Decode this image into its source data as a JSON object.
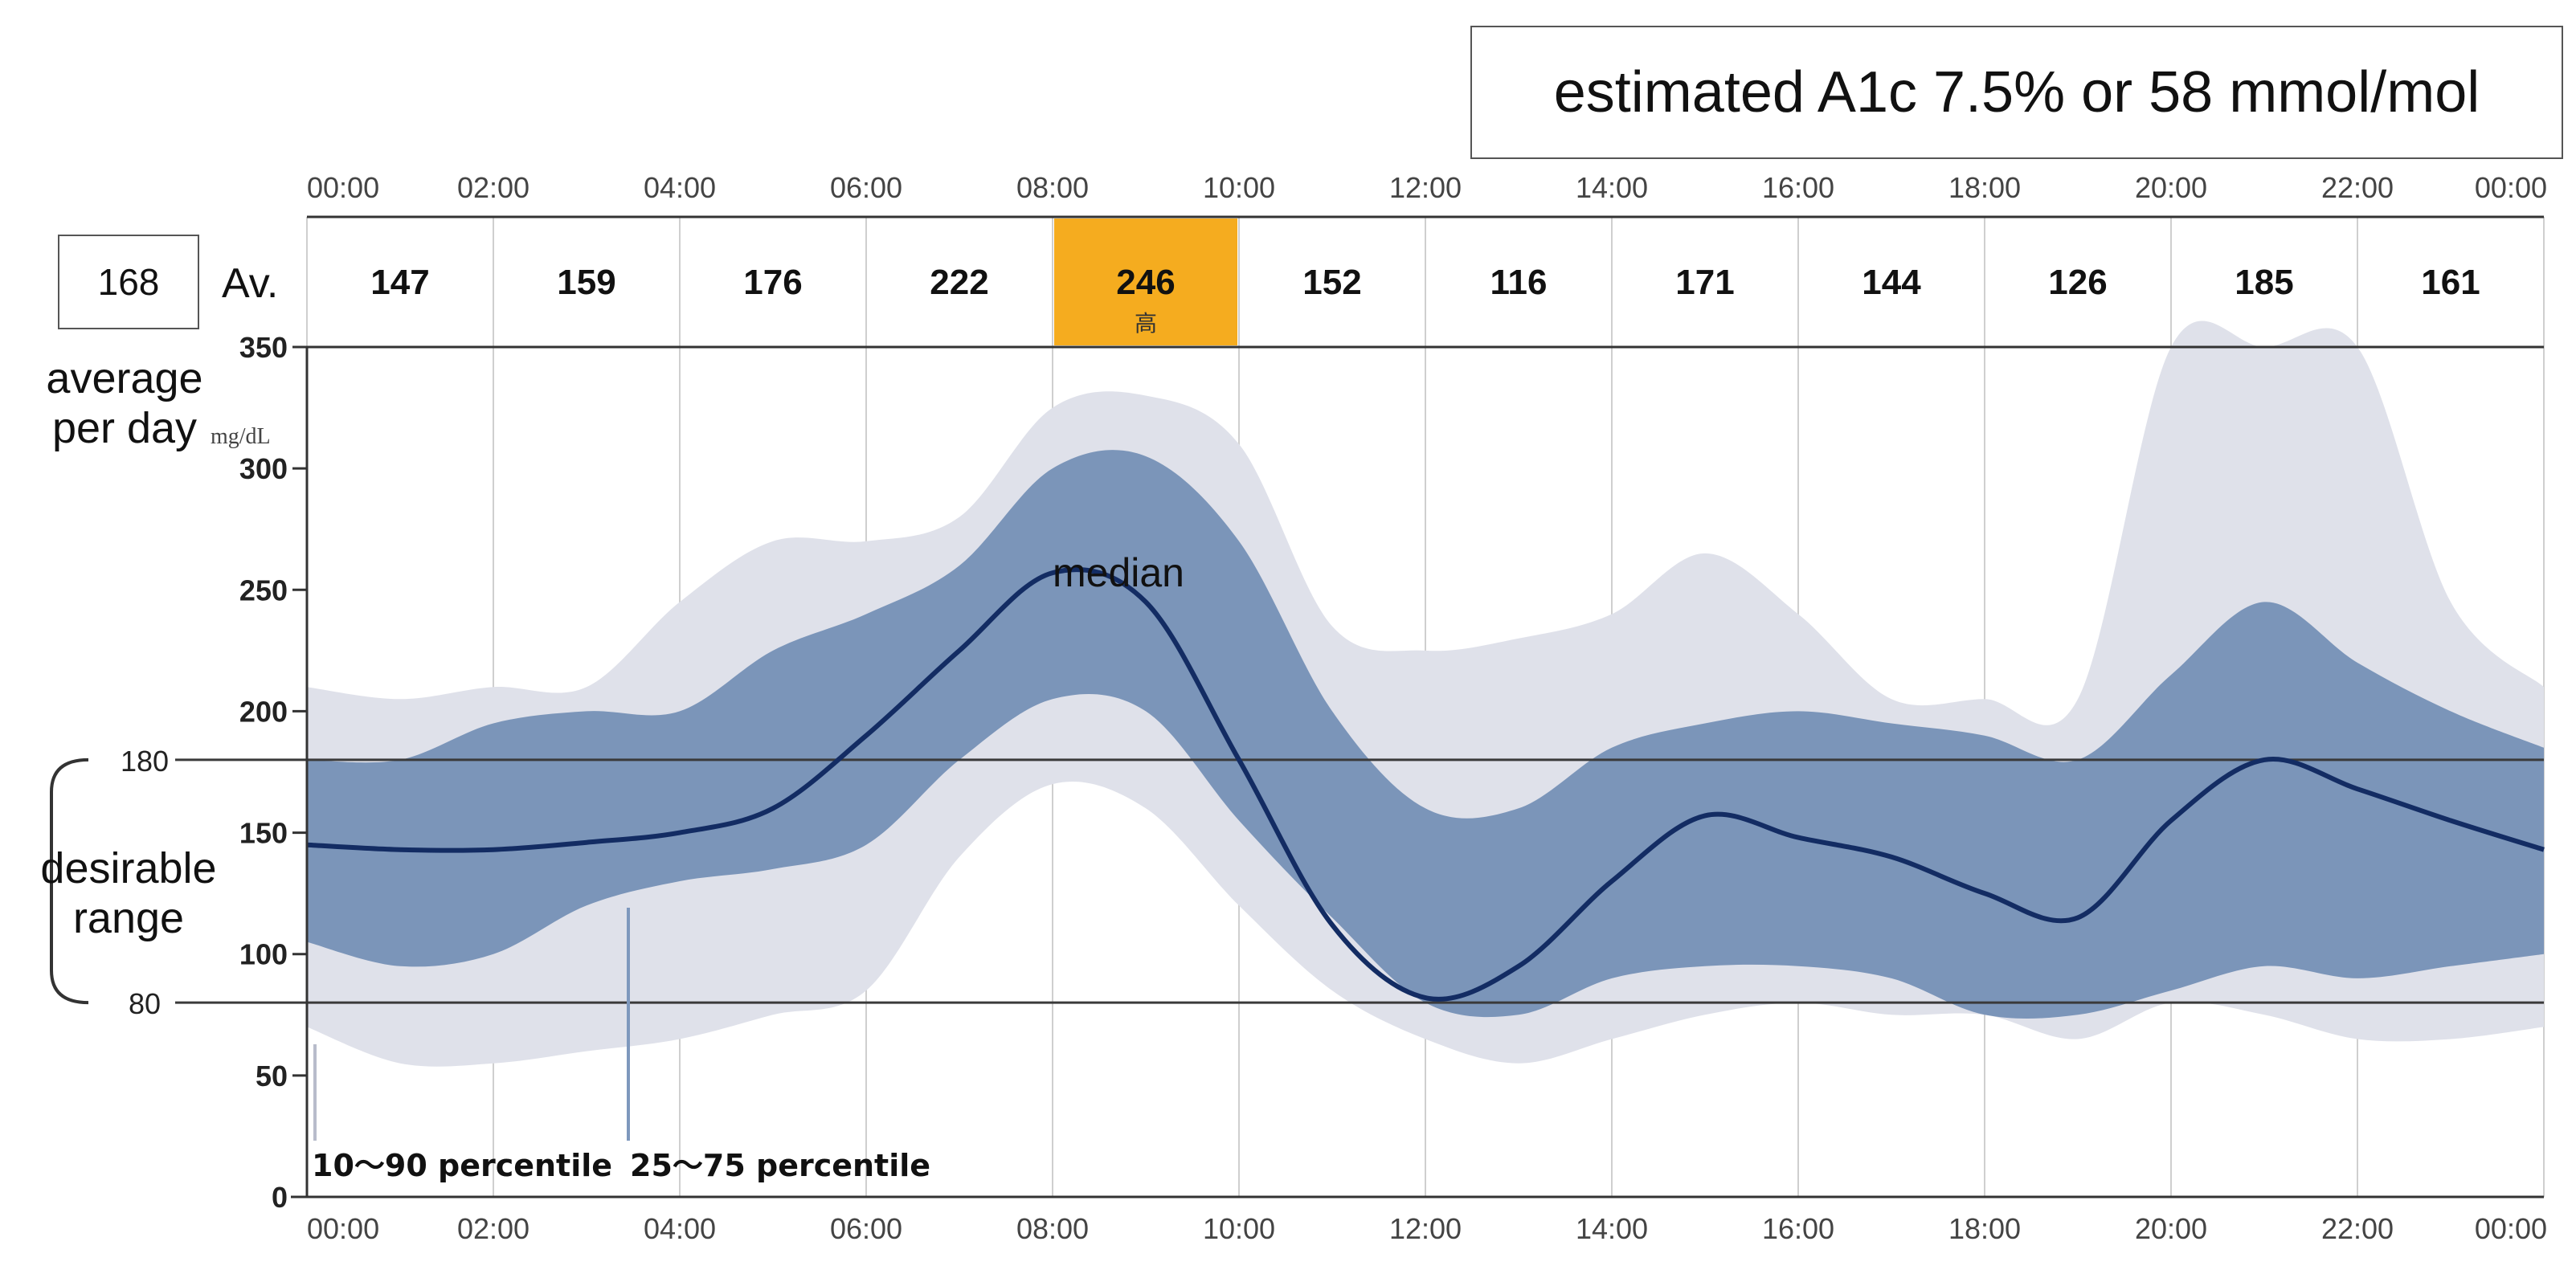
{
  "summary": {
    "a1c_text": "estimated A1c 7.5% or 58 mmol/mol",
    "daily_average": "168",
    "av_label": "Av.",
    "average_label_line1": "average",
    "average_label_line2": "per day",
    "range_label_line1": "desirable",
    "range_label_line2": "range"
  },
  "chart_data": {
    "type": "area",
    "xlabel": "",
    "ylabel": "",
    "y_unit": "mg/dL",
    "x_ticks": [
      "00:00",
      "02:00",
      "04:00",
      "06:00",
      "08:00",
      "10:00",
      "12:00",
      "14:00",
      "16:00",
      "18:00",
      "20:00",
      "22:00",
      "00:00"
    ],
    "y_ticks": [
      0,
      50,
      100,
      150,
      200,
      250,
      300,
      350
    ],
    "xlim": [
      0,
      24
    ],
    "ylim": [
      0,
      350
    ],
    "interval_averages": [
      {
        "value": "147"
      },
      {
        "value": "159"
      },
      {
        "value": "176"
      },
      {
        "value": "222"
      },
      {
        "value": "246",
        "note": "高",
        "highlight": true
      },
      {
        "value": "152"
      },
      {
        "value": "116"
      },
      {
        "value": "171"
      },
      {
        "value": "144"
      },
      {
        "value": "126"
      },
      {
        "value": "185"
      },
      {
        "value": "161"
      }
    ],
    "target_range": {
      "low": 80,
      "high": 180,
      "low_label": "80",
      "high_label": "180"
    },
    "x": [
      0,
      1,
      2,
      3,
      4,
      5,
      6,
      7,
      8,
      9,
      10,
      11,
      12,
      13,
      14,
      15,
      16,
      17,
      18,
      19,
      20,
      21,
      22,
      23,
      24
    ],
    "series": [
      {
        "name": "10〜90 percentile",
        "role": "outer-band",
        "lower": [
          70,
          55,
          55,
          60,
          65,
          75,
          85,
          140,
          170,
          160,
          120,
          85,
          65,
          55,
          65,
          75,
          80,
          75,
          75,
          65,
          80,
          75,
          65,
          65,
          70
        ],
        "upper": [
          210,
          205,
          210,
          210,
          245,
          270,
          270,
          280,
          325,
          330,
          310,
          235,
          225,
          230,
          240,
          265,
          240,
          205,
          205,
          205,
          350,
          350,
          350,
          245,
          210
        ]
      },
      {
        "name": "25〜75 percentile",
        "role": "inner-band",
        "lower": [
          105,
          95,
          100,
          120,
          130,
          135,
          145,
          180,
          205,
          200,
          155,
          115,
          80,
          75,
          90,
          95,
          95,
          90,
          75,
          75,
          85,
          95,
          90,
          95,
          100
        ],
        "upper": [
          180,
          180,
          195,
          200,
          200,
          225,
          240,
          260,
          300,
          305,
          270,
          200,
          160,
          160,
          185,
          195,
          200,
          195,
          190,
          180,
          215,
          245,
          220,
          200,
          185
        ]
      },
      {
        "name": "median",
        "role": "line",
        "values": [
          145,
          143,
          143,
          146,
          150,
          160,
          190,
          225,
          257,
          245,
          180,
          112,
          82,
          95,
          130,
          157,
          148,
          140,
          125,
          115,
          155,
          180,
          168,
          155,
          143
        ]
      }
    ],
    "annotations": {
      "median_label": "median",
      "p10_90_label": "10〜90 percentile",
      "p25_75_label": "25〜75 percentile",
      "unit_label": "mg/dL"
    },
    "colors": {
      "outer_band": "#dfe1ea",
      "inner_band": "#7b95b9",
      "median_line": "#132c63",
      "highlight": "#f5ac1f",
      "grid": "#cfcfcf"
    },
    "grid": true
  }
}
